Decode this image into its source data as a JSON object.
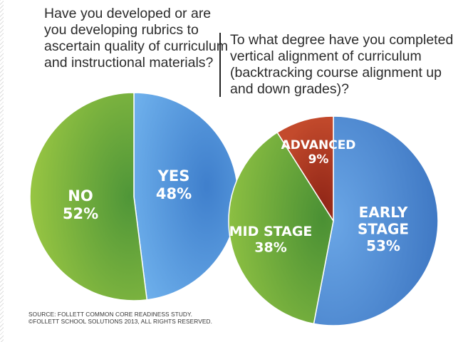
{
  "chart_data": [
    {
      "type": "pie",
      "title": "Have you developed or are you developing rubrics to ascertain quality of curriculum and instructional materials?",
      "categories": [
        "YES",
        "NO"
      ],
      "values": [
        48,
        52
      ],
      "value_labels": [
        "48%",
        "52%"
      ],
      "colors": [
        "#4a90d9",
        "#6aa83c"
      ],
      "legend": "none"
    },
    {
      "type": "pie",
      "title": "To what degree have you completed vertical alignment of curriculum (backtracking course alignment up and down grades)?",
      "categories": [
        "EARLY STAGE",
        "MID STAGE",
        "ADVANCED"
      ],
      "values": [
        53,
        38,
        9
      ],
      "value_labels": [
        "53%",
        "38%",
        "9%"
      ],
      "colors": [
        "#4a87d0",
        "#6aa83c",
        "#a8321f"
      ],
      "legend": "none"
    }
  ],
  "source": {
    "line1": "SOURCE: FOLLETT COMMON CORE READINESS STUDY.",
    "line2": "©FOLLETT SCHOOL SOLUTIONS 2013, ALL RIGHTS RESERVED."
  }
}
